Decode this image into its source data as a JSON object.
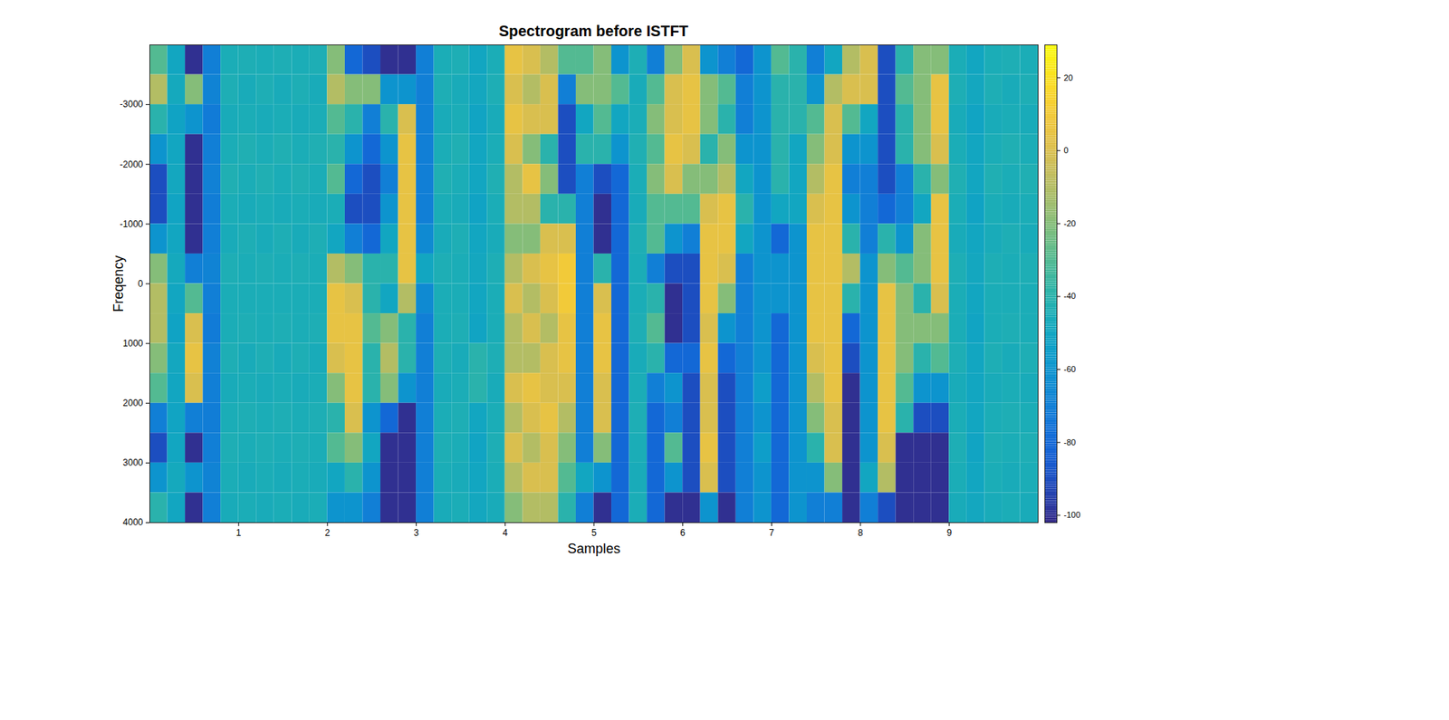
{
  "chart_data": {
    "type": "heatmap",
    "title": "Spectrogram before ISTFT",
    "x_label": "Samples",
    "y_label": "Freqency",
    "xlim": [
      0,
      10
    ],
    "ylim": [
      -4000,
      4000
    ],
    "xticks": [
      1,
      2,
      3,
      4,
      5,
      6,
      7,
      8,
      9
    ],
    "yticks": [
      -3000,
      -2000,
      -1000,
      0,
      1000,
      2000,
      3000,
      4000
    ],
    "x": [
      0.1,
      0.3,
      0.5,
      0.7,
      0.9,
      1.1,
      1.3,
      1.5,
      1.7,
      1.9,
      2.1,
      2.3,
      2.5,
      2.7,
      2.9,
      3.1,
      3.3,
      3.5,
      3.7,
      3.9,
      4.1,
      4.3,
      4.5,
      4.7,
      4.9,
      5.1,
      5.3,
      5.5,
      5.7,
      5.9,
      6.1,
      6.3,
      6.5,
      6.7,
      6.9,
      7.1,
      7.3,
      7.5,
      7.7,
      7.9,
      8.1,
      8.3,
      8.5,
      8.7,
      8.9,
      9.1,
      9.3,
      9.5,
      9.7,
      9.9
    ],
    "y": [
      -3750,
      -3250,
      -2750,
      -2250,
      -1750,
      -1250,
      -750,
      -250,
      250,
      750,
      1250,
      1750,
      2250,
      2750,
      3250,
      3750
    ],
    "z": [
      [
        -30,
        -10,
        -40,
        -60,
        -90,
        -90,
        -60,
        -20,
        -10,
        -10,
        -20,
        -30,
        -70,
        -90,
        -60,
        -40
      ],
      [
        -50,
        -48,
        -52,
        -50,
        -49,
        -51,
        -50,
        -48,
        -50,
        -52,
        -49,
        -50,
        -51,
        -50,
        -48,
        -50
      ],
      [
        -100,
        -20,
        -60,
        -100,
        -100,
        -100,
        -100,
        -70,
        -30,
        0,
        5,
        0,
        -70,
        -100,
        -60,
        -100
      ],
      [
        -70,
        -68,
        -72,
        -70,
        -69,
        -71,
        -70,
        -68,
        -70,
        -72,
        -69,
        -70,
        -71,
        -70,
        -68,
        -70
      ],
      [
        -45,
        -44,
        -46,
        -45,
        -43,
        -45,
        -46,
        -44,
        -45,
        -45,
        -44,
        -46,
        -45,
        -44,
        -45,
        -46
      ],
      [
        -44,
        -46,
        -45,
        -43,
        -45,
        -46,
        -44,
        -45,
        -45,
        -44,
        -46,
        -45,
        -44,
        -45,
        -46,
        -45
      ],
      [
        -45,
        -44,
        -46,
        -45,
        -43,
        -45,
        -46,
        -44,
        -45,
        -45,
        -44,
        -46,
        -45,
        -44,
        -45,
        -46
      ],
      [
        -44,
        -46,
        -45,
        -43,
        -45,
        -46,
        -44,
        -45,
        -45,
        -44,
        -46,
        -45,
        -44,
        -45,
        -46,
        -45
      ],
      [
        -45,
        -44,
        -46,
        -45,
        -43,
        -45,
        -46,
        -44,
        -45,
        -45,
        -44,
        -46,
        -45,
        -44,
        -45,
        -46
      ],
      [
        -44,
        -46,
        -45,
        -43,
        -45,
        -46,
        -44,
        -45,
        -45,
        -44,
        -46,
        -45,
        -44,
        -45,
        -46,
        -45
      ],
      [
        -20,
        -10,
        -30,
        -40,
        -30,
        -45,
        -50,
        -10,
        5,
        5,
        0,
        -20,
        -40,
        -30,
        -50,
        -60
      ],
      [
        -80,
        -20,
        -40,
        -60,
        -80,
        -90,
        -70,
        -20,
        0,
        5,
        5,
        5,
        0,
        -20,
        -40,
        -60
      ],
      [
        -90,
        -20,
        -70,
        -80,
        -90,
        -90,
        -80,
        -40,
        -40,
        -30,
        -40,
        -40,
        -60,
        -50,
        -60,
        -70
      ],
      [
        -100,
        -60,
        -40,
        -60,
        -70,
        -60,
        -50,
        -40,
        -50,
        -20,
        -10,
        -20,
        -80,
        -100,
        -100,
        -100
      ],
      [
        -100,
        -60,
        0,
        5,
        5,
        5,
        5,
        5,
        -10,
        -40,
        -40,
        -60,
        -100,
        -100,
        -100,
        -100
      ],
      [
        -70,
        -70,
        -70,
        -70,
        -70,
        -70,
        -65,
        -50,
        -65,
        -70,
        -70,
        -70,
        -70,
        -70,
        -70,
        -70
      ],
      [
        -45,
        -44,
        -46,
        -45,
        -43,
        -45,
        -46,
        -44,
        -45,
        -45,
        -44,
        -46,
        -45,
        -44,
        -45,
        -46
      ],
      [
        -44,
        -46,
        -45,
        -43,
        -45,
        -46,
        -44,
        -45,
        -45,
        -44,
        -46,
        -45,
        -44,
        -45,
        -46,
        -45
      ],
      [
        -50,
        -49,
        -51,
        -50,
        -50,
        -52,
        -50,
        -49,
        -50,
        -51,
        -40,
        -40,
        -50,
        -51,
        -50,
        -49
      ],
      [
        -45,
        -44,
        -46,
        -45,
        -43,
        -45,
        -46,
        -44,
        -45,
        -45,
        -44,
        -46,
        -45,
        -44,
        -45,
        -46
      ],
      [
        5,
        0,
        5,
        0,
        -10,
        -10,
        -20,
        -10,
        0,
        -10,
        -10,
        0,
        -10,
        0,
        -10,
        -20
      ],
      [
        0,
        -10,
        0,
        -20,
        5,
        -10,
        -20,
        0,
        -10,
        0,
        -10,
        5,
        0,
        -10,
        0,
        -10
      ],
      [
        -10,
        0,
        0,
        -40,
        -20,
        -40,
        0,
        5,
        0,
        -10,
        0,
        0,
        5,
        0,
        0,
        -10
      ],
      [
        -30,
        -70,
        -90,
        -90,
        -90,
        -40,
        0,
        10,
        10,
        5,
        5,
        0,
        -10,
        -20,
        -30,
        -40
      ],
      [
        -30,
        -20,
        -50,
        -40,
        -70,
        -70,
        -70,
        -70,
        -70,
        -70,
        -70,
        -70,
        -70,
        -70,
        -50,
        -70
      ],
      [
        -20,
        -20,
        -30,
        -40,
        -90,
        -100,
        -100,
        -40,
        0,
        5,
        5,
        0,
        0,
        -20,
        -60,
        -100
      ],
      [
        -60,
        -30,
        -50,
        -60,
        -80,
        -80,
        -80,
        -80,
        -80,
        -80,
        -80,
        -80,
        -80,
        -80,
        -80,
        -80
      ],
      [
        -44,
        -46,
        -45,
        -43,
        -45,
        -46,
        -44,
        -45,
        -45,
        -44,
        -46,
        -45,
        -44,
        -45,
        -46,
        -45
      ],
      [
        -70,
        -30,
        -20,
        -30,
        -20,
        -30,
        -30,
        -70,
        -40,
        -30,
        -40,
        -70,
        -80,
        -80,
        -80,
        -80
      ],
      [
        -20,
        0,
        0,
        5,
        0,
        -30,
        -60,
        -90,
        -100,
        -100,
        -80,
        -60,
        -70,
        -30,
        -60,
        -100
      ],
      [
        0,
        5,
        5,
        0,
        -20,
        -30,
        -70,
        -90,
        -90,
        -90,
        -80,
        -90,
        -90,
        -90,
        -90,
        -100
      ],
      [
        -60,
        -20,
        -20,
        -40,
        -20,
        0,
        5,
        5,
        5,
        0,
        5,
        0,
        0,
        5,
        0,
        -60
      ],
      [
        -70,
        -30,
        -40,
        -20,
        -10,
        5,
        5,
        0,
        -20,
        -60,
        -80,
        -90,
        -90,
        -90,
        -90,
        -100
      ],
      [
        -80,
        -70,
        -70,
        -60,
        -50,
        -40,
        -50,
        -70,
        -70,
        -70,
        -70,
        -70,
        -70,
        -70,
        -70,
        -70
      ],
      [
        -60,
        -60,
        -60,
        -60,
        -60,
        -60,
        -60,
        -60,
        -60,
        -60,
        -60,
        -55,
        -60,
        -55,
        -60,
        -60
      ],
      [
        -30,
        -40,
        -40,
        -40,
        -40,
        -50,
        -80,
        -60,
        -60,
        -80,
        -80,
        -80,
        -80,
        -80,
        -80,
        -80
      ],
      [
        -40,
        -40,
        -40,
        -50,
        -50,
        -50,
        -60,
        -60,
        -60,
        -60,
        -60,
        -60,
        -60,
        -60,
        -60,
        -60
      ],
      [
        -70,
        -60,
        -30,
        -20,
        -10,
        0,
        5,
        5,
        5,
        5,
        0,
        -10,
        -20,
        -40,
        -60,
        -70
      ],
      [
        -50,
        -10,
        0,
        0,
        5,
        5,
        5,
        5,
        5,
        5,
        5,
        5,
        0,
        0,
        -20,
        -70
      ],
      [
        -10,
        0,
        -30,
        -60,
        -70,
        -60,
        -40,
        -10,
        -40,
        -80,
        -90,
        -100,
        -100,
        -100,
        -100,
        -100
      ],
      [
        0,
        0,
        -50,
        -60,
        -70,
        -70,
        -70,
        -60,
        -60,
        -60,
        -60,
        -60,
        -60,
        -60,
        -50,
        -70
      ],
      [
        -90,
        -90,
        -90,
        -90,
        -90,
        -80,
        -40,
        -20,
        5,
        5,
        5,
        5,
        5,
        0,
        -10,
        -90
      ],
      [
        -40,
        -30,
        -40,
        -40,
        -70,
        -70,
        -60,
        -30,
        -20,
        -20,
        -20,
        -30,
        -40,
        -100,
        -100,
        -100
      ],
      [
        -20,
        -20,
        -20,
        -20,
        -40,
        -50,
        -20,
        -20,
        -40,
        -20,
        -40,
        -60,
        -90,
        -100,
        -100,
        -100
      ],
      [
        -20,
        5,
        5,
        0,
        -20,
        5,
        5,
        5,
        0,
        -20,
        -30,
        -60,
        -90,
        -100,
        -100,
        -100
      ],
      [
        -45,
        -44,
        -46,
        -45,
        -43,
        -45,
        -46,
        -44,
        -45,
        -45,
        -44,
        -46,
        -45,
        -44,
        -45,
        -46
      ],
      [
        -50,
        -49,
        -51,
        -50,
        -50,
        -52,
        -50,
        -49,
        -50,
        -51,
        -50,
        -50,
        -50,
        -51,
        -50,
        -49
      ],
      [
        -45,
        -44,
        -46,
        -45,
        -43,
        -45,
        -46,
        -44,
        -45,
        -45,
        -44,
        -46,
        -45,
        -44,
        -45,
        -46
      ],
      [
        -44,
        -46,
        -45,
        -43,
        -45,
        -46,
        -44,
        -45,
        -45,
        -44,
        -46,
        -45,
        -44,
        -45,
        -46,
        -45
      ],
      [
        -45,
        -44,
        -46,
        -45,
        -43,
        -45,
        -46,
        -44,
        -45,
        -45,
        -44,
        -46,
        -45,
        -44,
        -45,
        -46
      ]
    ],
    "colorbar": {
      "range": [
        -102,
        29
      ],
      "ticks": [
        -100,
        -80,
        -60,
        -40,
        -20,
        0,
        20
      ]
    }
  }
}
